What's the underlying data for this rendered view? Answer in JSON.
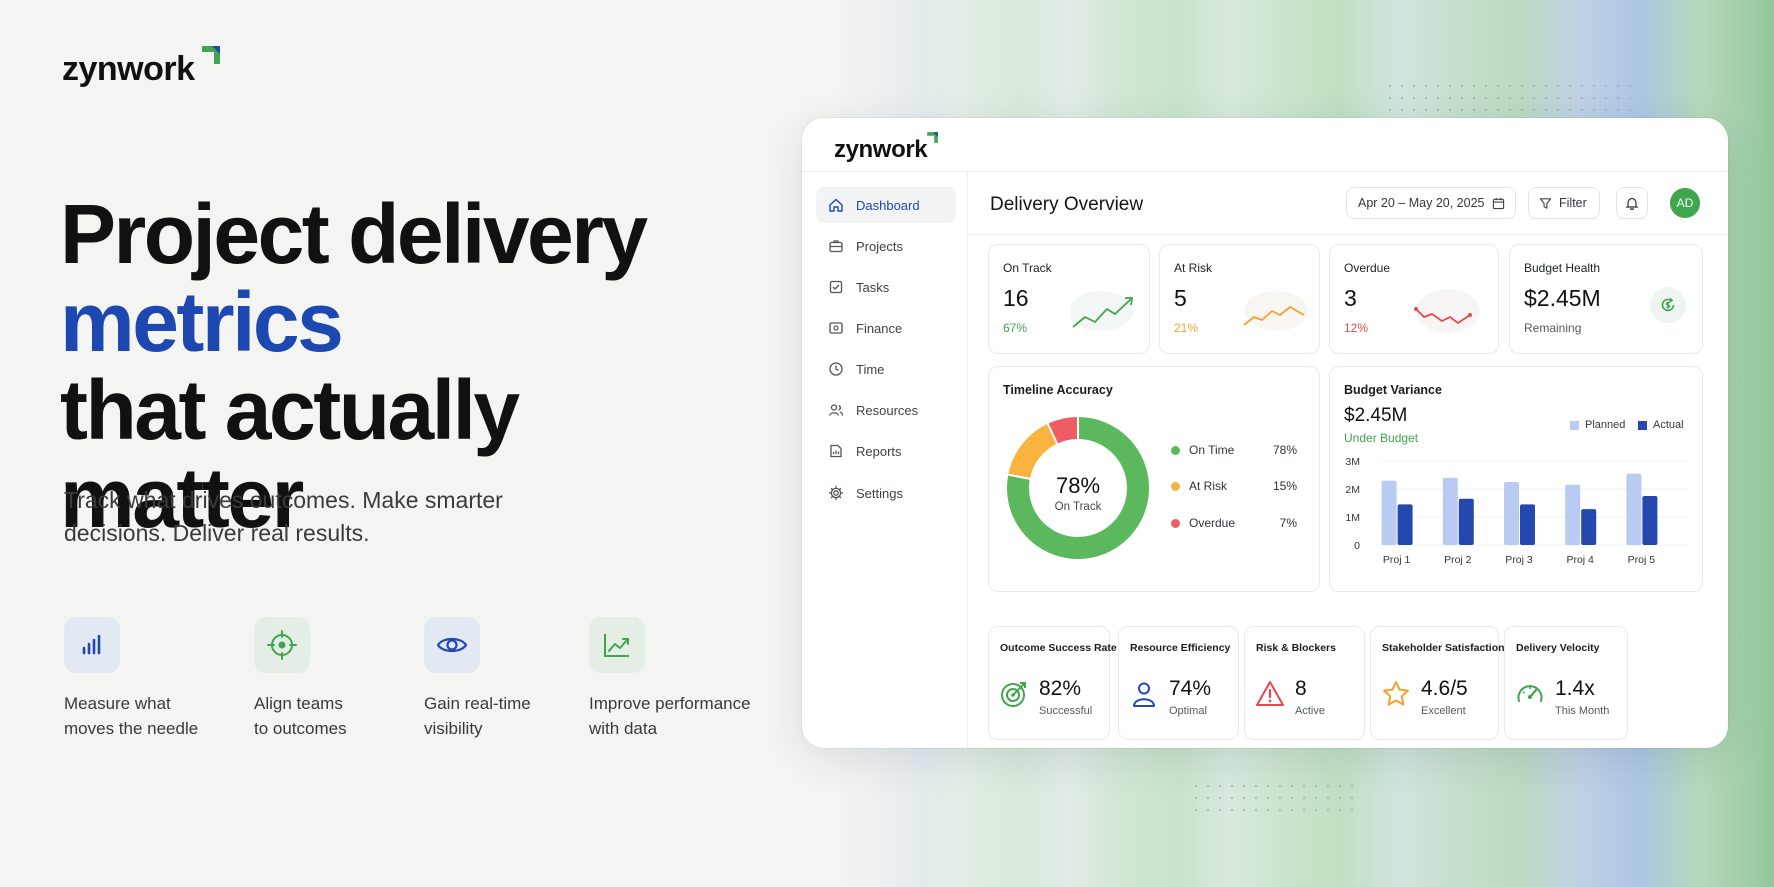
{
  "brand": {
    "name": "zynwork"
  },
  "hero": {
    "line1": "Project delivery",
    "line2": "metrics",
    "line3": "that actually matter",
    "subtitle": "Track what drives outcomes. Make smarter decisions. Deliver real results."
  },
  "features": [
    {
      "icon": "bar-chart-icon",
      "label": "Measure what\nmoves the needle"
    },
    {
      "icon": "target-icon",
      "label": "Align teams\nto outcomes"
    },
    {
      "icon": "eye-icon",
      "label": "Gain real-time\nvisibility"
    },
    {
      "icon": "trend-up-icon",
      "label": "Improve performance\nwith data"
    }
  ],
  "dashboard": {
    "brand": "zynwork",
    "nav": [
      {
        "label": "Dashboard",
        "icon": "home-icon",
        "active": true
      },
      {
        "label": "Projects",
        "icon": "briefcase-icon"
      },
      {
        "label": "Tasks",
        "icon": "checkbox-icon"
      },
      {
        "label": "Finance",
        "icon": "wallet-icon"
      },
      {
        "label": "Time",
        "icon": "clock-icon"
      },
      {
        "label": "Resources",
        "icon": "users-icon"
      },
      {
        "label": "Reports",
        "icon": "report-icon"
      },
      {
        "label": "Settings",
        "icon": "gear-icon"
      }
    ],
    "title": "Delivery Overview",
    "date_range": "Apr 20 – May 20, 2025",
    "filter_label": "Filter",
    "avatar_initials": "AD",
    "stats": [
      {
        "label": "On Track",
        "value": "16",
        "pct": "67%",
        "color": "#3fa64d"
      },
      {
        "label": "At Risk",
        "value": "5",
        "pct": "21%",
        "color": "#f4a12e"
      },
      {
        "label": "Overdue",
        "value": "3",
        "pct": "12%",
        "color": "#e5484d"
      },
      {
        "label": "Budget Health",
        "value": "$2.45M",
        "sub": "Remaining",
        "color": "#3fa64d"
      }
    ],
    "timeline": {
      "title": "Timeline Accuracy",
      "center_value": "78%",
      "center_label": "On Track",
      "legend": [
        {
          "label": "On Time",
          "value": "78%",
          "color": "#5cb85c"
        },
        {
          "label": "At Risk",
          "value": "15%",
          "color": "#f9b440"
        },
        {
          "label": "Overdue",
          "value": "7%",
          "color": "#ef5d63"
        }
      ]
    },
    "budget": {
      "title": "Budget Variance",
      "amount": "$2.45M",
      "status": "Under Budget",
      "legend_planned": "Planned",
      "legend_actual": "Actual"
    },
    "metrics": [
      {
        "label": "Outcome Success Rate",
        "value": "82%",
        "sub": "Successful",
        "icon": "target-arrow-icon"
      },
      {
        "label": "Resource Efficiency",
        "value": "74%",
        "sub": "Optimal",
        "icon": "person-icon"
      },
      {
        "label": "Risk & Blockers",
        "value": "8",
        "sub": "Active",
        "icon": "warning-icon"
      },
      {
        "label": "Stakeholder Satisfaction",
        "value": "4.6/5",
        "sub": "Excellent",
        "icon": "star-icon"
      },
      {
        "label": "Delivery Velocity",
        "value": "1.4x",
        "sub": "This Month",
        "icon": "speedometer-icon"
      }
    ]
  },
  "chart_data": [
    {
      "type": "pie",
      "categories": [
        "On Time",
        "At Risk",
        "Overdue"
      ],
      "values": [
        78,
        15,
        7
      ],
      "title": "Timeline Accuracy",
      "colors": [
        "#5cb85c",
        "#f9b440",
        "#ef5d63"
      ]
    },
    {
      "type": "bar",
      "title": "Budget Variance",
      "categories": [
        "Proj 1",
        "Proj 2",
        "Proj 3",
        "Proj 4",
        "Proj 5"
      ],
      "series": [
        {
          "name": "Planned",
          "values": [
            2.3,
            2.4,
            2.25,
            2.15,
            2.55
          ],
          "color": "#b9cbf3"
        },
        {
          "name": "Actual",
          "values": [
            1.45,
            1.65,
            1.45,
            1.28,
            1.75
          ],
          "color": "#2448b0"
        }
      ],
      "yticks": [
        "0",
        "1M",
        "2M",
        "3M"
      ],
      "ylim": [
        0,
        3
      ],
      "legend": "top-right",
      "grid": true
    }
  ]
}
